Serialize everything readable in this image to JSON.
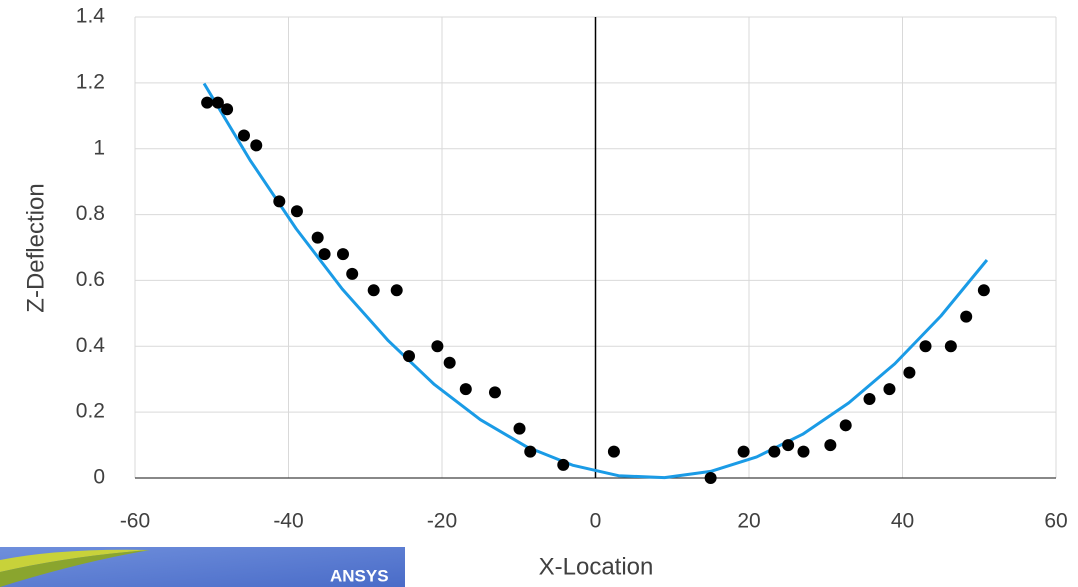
{
  "chart_data": {
    "type": "scatter",
    "x_label": "X-Location",
    "y_label": "Z-Deflection",
    "xlim": [
      -60,
      60
    ],
    "xticks": [
      -60,
      -40,
      -20,
      0,
      20,
      40,
      60
    ],
    "ylim": [
      0,
      1.4
    ],
    "yticks": [
      0,
      0.2,
      0.4,
      0.6,
      0.8,
      1,
      1.2,
      1.4
    ],
    "grid": true,
    "points": {
      "color": "#000000",
      "x": [
        -50.6,
        -49.2,
        -48.0,
        -45.8,
        -44.2,
        -41.2,
        -38.9,
        -36.2,
        -35.3,
        -32.9,
        -31.7,
        -28.9,
        -25.9,
        -24.3,
        -20.6,
        -19.0,
        -16.9,
        -13.1,
        -9.9,
        -8.5,
        -4.2,
        2.4,
        15.0,
        19.3,
        23.3,
        25.1,
        27.1,
        30.6,
        32.6,
        35.7,
        38.3,
        40.9,
        43.0,
        46.3,
        48.3,
        50.6
      ],
      "y": [
        1.14,
        1.14,
        1.12,
        1.04,
        1.01,
        0.84,
        0.81,
        0.73,
        0.68,
        0.68,
        0.62,
        0.57,
        0.57,
        0.37,
        0.4,
        0.35,
        0.27,
        0.26,
        0.15,
        0.08,
        0.04,
        0.08,
        0.0,
        0.08,
        0.08,
        0.1,
        0.08,
        0.1,
        0.16,
        0.24,
        0.27,
        0.32,
        0.4,
        0.4,
        0.49,
        0.57
      ]
    },
    "trendline": {
      "color": "#1a9be6",
      "x": [
        -51,
        -45,
        -39,
        -33,
        -27,
        -21,
        -15,
        -9,
        -3,
        3,
        9,
        15,
        21,
        27,
        33,
        39,
        45,
        51
      ],
      "y": [
        1.198,
        0.965,
        0.757,
        0.574,
        0.417,
        0.284,
        0.177,
        0.095,
        0.039,
        0.007,
        0.001,
        0.02,
        0.064,
        0.133,
        0.228,
        0.347,
        0.492,
        0.662
      ]
    }
  },
  "overlay": {
    "text": "ANSYS"
  }
}
